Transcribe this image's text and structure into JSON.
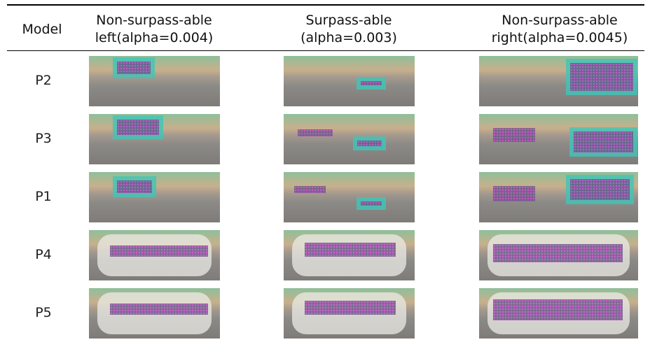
{
  "header": {
    "model": "Model",
    "columns": [
      {
        "lines": [
          "Non-surpass-able",
          "left(alpha=0.004)"
        ]
      },
      {
        "lines": [
          "Surpass-able",
          "(alpha=0.003)"
        ]
      },
      {
        "lines": [
          "Non-surpass-able",
          "right(alpha=0.0045)"
        ]
      }
    ]
  },
  "rows": [
    {
      "model": "P2"
    },
    {
      "model": "P3"
    },
    {
      "model": "P1"
    },
    {
      "model": "P4"
    },
    {
      "model": "P5"
    }
  ]
}
